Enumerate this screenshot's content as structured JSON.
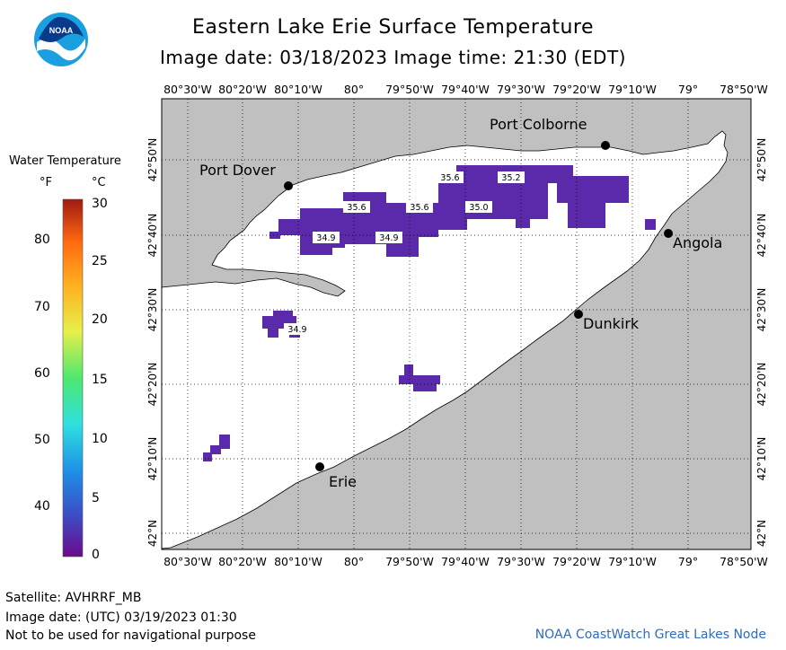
{
  "header": {
    "title": "Eastern Lake Erie Surface Temperature",
    "subtitle": "Image date: 03/18/2023    Image time: 21:30 (EDT)",
    "logo_text": "NOAA"
  },
  "legend": {
    "title": "Water Temperature",
    "unit_f": "°F",
    "unit_c": "°C",
    "f_ticks": [
      "80",
      "70",
      "60",
      "50",
      "40"
    ],
    "c_ticks": [
      "30",
      "25",
      "20",
      "15",
      "10",
      "5",
      "0"
    ],
    "range_c": [
      0,
      30
    ],
    "colors": [
      "#6a0a8a",
      "#3c4fc8",
      "#1e90e8",
      "#2ee0e0",
      "#4ee86e",
      "#e6f04a",
      "#ffb020",
      "#ff6a10",
      "#a01a10"
    ]
  },
  "axes": {
    "lon_labels": [
      "80°30'W",
      "80°20'W",
      "80°10'W",
      "80°",
      "79°50'W",
      "79°40'W",
      "79°30'W",
      "79°20'W",
      "79°10'W",
      "79°",
      "78°50'W"
    ],
    "lat_labels": [
      "42°50'N",
      "42°40'N",
      "42°30'N",
      "42°20'N",
      "42°10'N",
      "42°N"
    ]
  },
  "places": [
    {
      "name": "Port Colborne",
      "id": "port-colborne"
    },
    {
      "name": "Port Dover",
      "id": "port-dover"
    },
    {
      "name": "Angola",
      "id": "angola"
    },
    {
      "name": "Dunkirk",
      "id": "dunkirk"
    },
    {
      "name": "Erie",
      "id": "erie"
    }
  ],
  "temp_labels": [
    "35.6",
    "35.2",
    "35.6",
    "35.6",
    "35.0",
    "34.9",
    "34.9",
    "34.9"
  ],
  "footer": {
    "satellite": "Satellite: AVHRRF_MB",
    "utc_date": "Image date: (UTC) 03/19/2023  01:30",
    "disclaimer": "Not to be used for navigational purpose",
    "credit": "NOAA CoastWatch Great Lakes Node"
  }
}
